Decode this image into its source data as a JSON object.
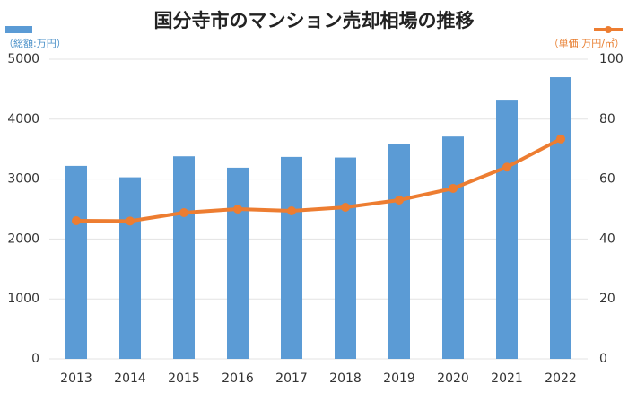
{
  "chart_data": {
    "type": "bar-line",
    "title": "国分寺市のマンション売却相場の推移",
    "categories": [
      "2013",
      "2014",
      "2015",
      "2016",
      "2017",
      "2018",
      "2019",
      "2020",
      "2021",
      "2022"
    ],
    "series": [
      {
        "name": "（総額:万円）",
        "color": "#5b9bd5",
        "type": "bar",
        "values": [
          3220,
          3030,
          3380,
          3190,
          3370,
          3360,
          3580,
          3710,
          4310,
          4700
        ]
      },
      {
        "name": "（単価:万円/㎡）",
        "color": "#ed7d31",
        "type": "line",
        "axis": "y2",
        "values": [
          46.1,
          46,
          48.8,
          50,
          49.4,
          50.6,
          53,
          56.9,
          64,
          73.4
        ]
      }
    ],
    "ylim": [
      0,
      5000
    ],
    "yticks": [
      0,
      1000,
      2000,
      3000,
      4000,
      5000
    ],
    "y2lim": [
      0,
      100
    ],
    "y2ticks": [
      0,
      20,
      40,
      60,
      80,
      100
    ],
    "grid": true
  }
}
